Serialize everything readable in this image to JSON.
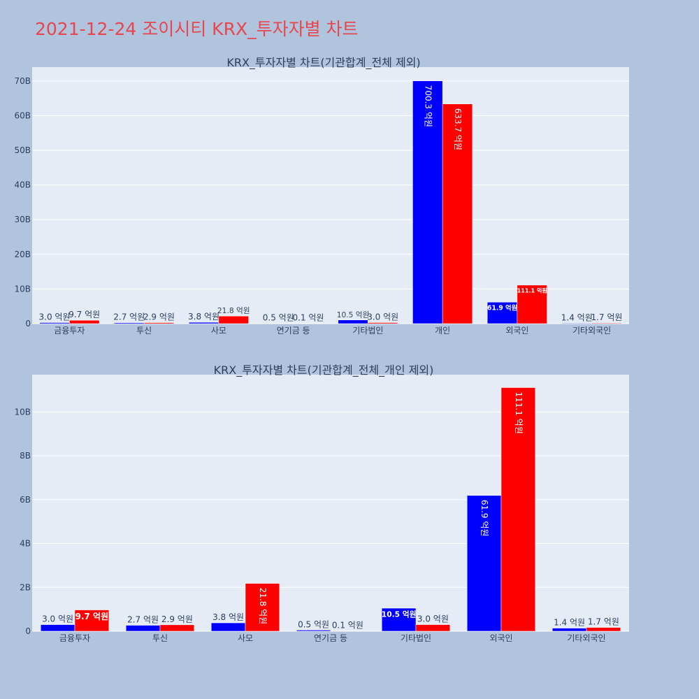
{
  "page": {
    "title": "2021-12-24 조이시티 KRX_투자자별 차트"
  },
  "colors": {
    "background": "#b0c4de",
    "plot_background": "#e5ecf6",
    "grid": "#ffffff",
    "title": "#e8464e",
    "text": "#2a3f5f",
    "series_a": "#0000ff",
    "series_b": "#ff0000"
  },
  "chart_data": [
    {
      "type": "bar",
      "title": "KRX_투자자별 차트(기관합계_전체 제외)",
      "xlabel": "",
      "ylabel": "",
      "ylim": [
        0,
        74000000000
      ],
      "yticks": [
        0,
        10000000000,
        20000000000,
        30000000000,
        40000000000,
        50000000000,
        60000000000,
        70000000000
      ],
      "ytick_labels": [
        "0",
        "10B",
        "20B",
        "30B",
        "40B",
        "50B",
        "60B",
        "70B"
      ],
      "grid": true,
      "legend": "none",
      "categories": [
        "금융투자",
        "투신",
        "사모",
        "연기금 등",
        "기타법인",
        "개인",
        "외국인",
        "기타외국인"
      ],
      "series": [
        {
          "color": "#0000ff",
          "values": [
            300000000,
            270000000,
            380000000,
            50000000,
            1050000000,
            70030000000,
            6190000000,
            140000000
          ],
          "labels": [
            "3.0 억원",
            "2.7 억원",
            "3.8 억원",
            "0.5 억원",
            "10.5 억원",
            "700.3 억원",
            "61.9 억원",
            "1.4 억원"
          ]
        },
        {
          "color": "#ff0000",
          "values": [
            970000000,
            290000000,
            2180000000,
            10000000,
            300000000,
            63370000000,
            11110000000,
            170000000
          ],
          "labels": [
            "9.7 억원",
            "2.9 억원",
            "21.8 억원",
            "0.1 억원",
            "3.0 억원",
            "633.7 억원",
            "111.1 억원",
            "1.7 억원"
          ]
        }
      ]
    },
    {
      "type": "bar",
      "title": "KRX_투자자별 차트(기관합계_전체_개인 제외)",
      "xlabel": "",
      "ylabel": "",
      "ylim": [
        0,
        11700000000
      ],
      "yticks": [
        0,
        2000000000,
        4000000000,
        6000000000,
        8000000000,
        10000000000
      ],
      "ytick_labels": [
        "0",
        "2B",
        "4B",
        "6B",
        "8B",
        "10B"
      ],
      "grid": true,
      "legend": "none",
      "categories": [
        "금융투자",
        "투신",
        "사모",
        "연기금 등",
        "기타법인",
        "외국인",
        "기타외국인"
      ],
      "series": [
        {
          "color": "#0000ff",
          "values": [
            300000000,
            270000000,
            380000000,
            50000000,
            1050000000,
            6190000000,
            140000000
          ],
          "labels": [
            "3.0 억원",
            "2.7 억원",
            "3.8 억원",
            "0.5 억원",
            "10.5 억원",
            "61.9 억원",
            "1.4 억원"
          ]
        },
        {
          "color": "#ff0000",
          "values": [
            970000000,
            290000000,
            2180000000,
            10000000,
            300000000,
            11110000000,
            170000000
          ],
          "labels": [
            "9.7 억원",
            "2.9 억원",
            "21.8 억원",
            "0.1 억원",
            "3.0 억원",
            "111.1 억원",
            "1.7 억원"
          ]
        }
      ]
    }
  ]
}
